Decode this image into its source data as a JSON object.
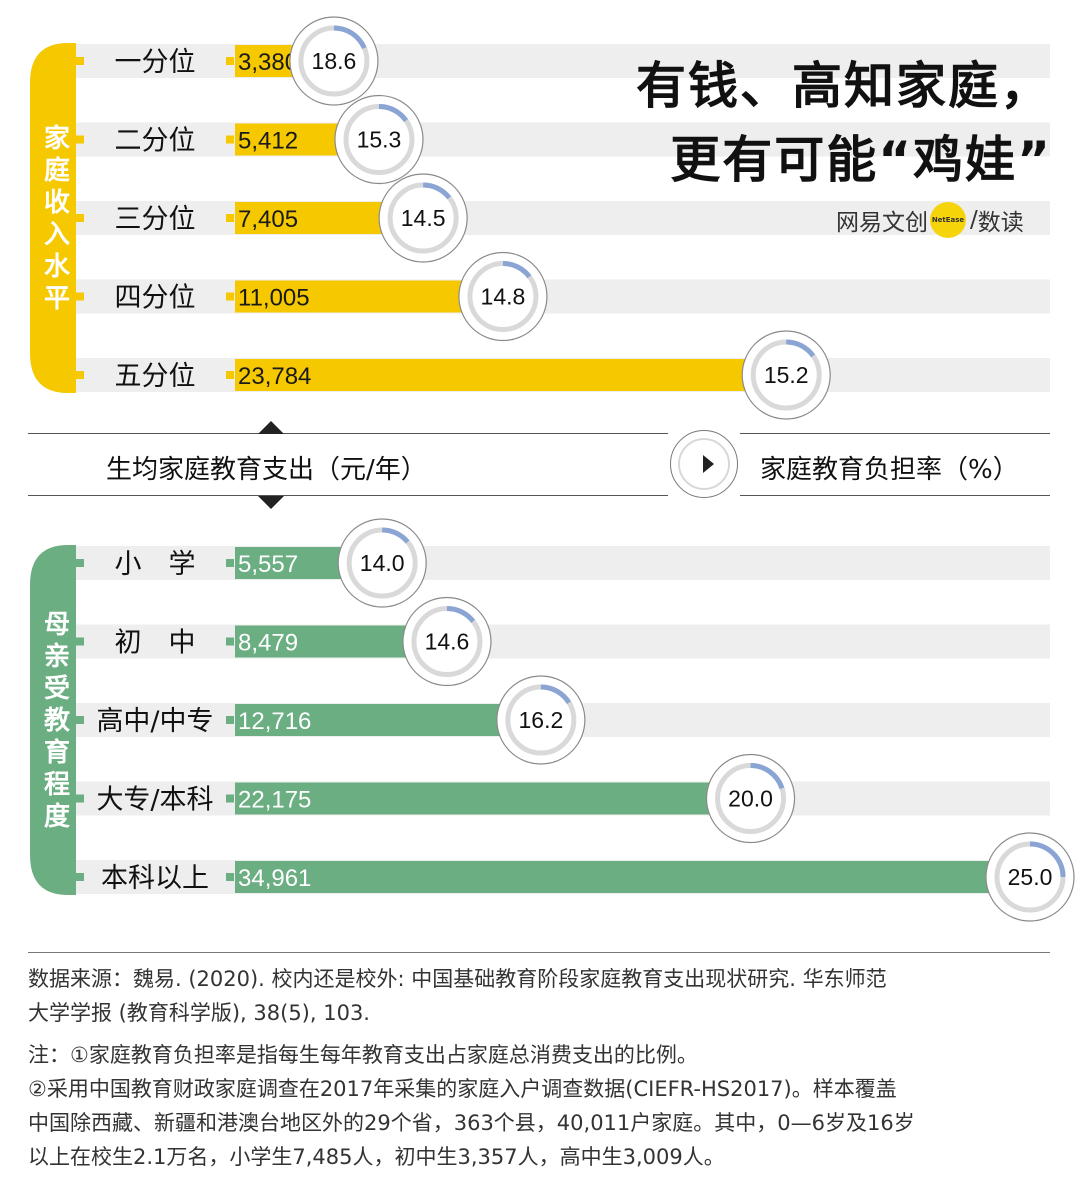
{
  "title": {
    "line1": "有钱、高知家庭，",
    "line2": "更有可能“鸡娃”"
  },
  "brand": {
    "name": "网易文创",
    "badge": "NetEase",
    "slash": "/",
    "product": "数读"
  },
  "colors": {
    "income": "#f5c800",
    "education": "#6bae82",
    "track": "#eeeeee",
    "arc": "#8aa5d4",
    "ring": "#d9d9d9"
  },
  "legend": {
    "spending": "生均家庭教育支出（元/年）",
    "burden": "家庭教育负担率（%）"
  },
  "chart_data": [
    {
      "type": "bar",
      "group": "家庭收入水平",
      "categories": [
        "一分位",
        "二分位",
        "三分位",
        "四分位",
        "五分位"
      ],
      "series": [
        {
          "name": "生均家庭教育支出（元/年）",
          "values": [
            3380,
            5412,
            7405,
            11005,
            23784
          ],
          "labels": [
            "3,380",
            "5,412",
            "7,405",
            "11,005",
            "23,784"
          ]
        },
        {
          "name": "家庭教育负担率（%）",
          "values": [
            18.6,
            15.3,
            14.5,
            14.8,
            15.2
          ],
          "labels": [
            "18.6",
            "15.3",
            "14.5",
            "14.8",
            "15.2"
          ]
        }
      ],
      "xlim": [
        0,
        36000
      ]
    },
    {
      "type": "bar",
      "group": "母亲受教育程度",
      "categories": [
        "小　学",
        "初　中",
        "高中/中专",
        "大专/本科",
        "本科以上"
      ],
      "series": [
        {
          "name": "生均家庭教育支出（元/年）",
          "values": [
            5557,
            8479,
            12716,
            22175,
            34961
          ],
          "labels": [
            "5,557",
            "8,479",
            "12,716",
            "22,175",
            "34,961"
          ]
        },
        {
          "name": "家庭教育负担率（%）",
          "values": [
            14.0,
            14.6,
            16.2,
            20.0,
            25.0
          ],
          "labels": [
            "14.0",
            "14.6",
            "16.2",
            "20.0",
            "25.0"
          ]
        }
      ],
      "xlim": [
        0,
        36000
      ]
    }
  ],
  "source": {
    "line1": "数据来源：魏易. (2020). 校内还是校外: 中国基础教育阶段家庭教育支出现状研究. 华东师范",
    "line2": "大学学报 (教育科学版), 38(5), 103."
  },
  "notes": {
    "line1": "注：①家庭教育负担率是指每生每年教育支出占家庭总消费支出的比例。",
    "line2": "②采用中国教育财政家庭调查在2017年采集的家庭入户调查数据(CIEFR-HS2017)。样本覆盖",
    "line3": "中国除西藏、新疆和港澳台地区外的29个省，363个县，40,011户家庭。其中，0—6岁及16岁",
    "line4": "以上在校生2.1万名，小学生7,485人，初中生3,357人，高中生3,009人。"
  }
}
